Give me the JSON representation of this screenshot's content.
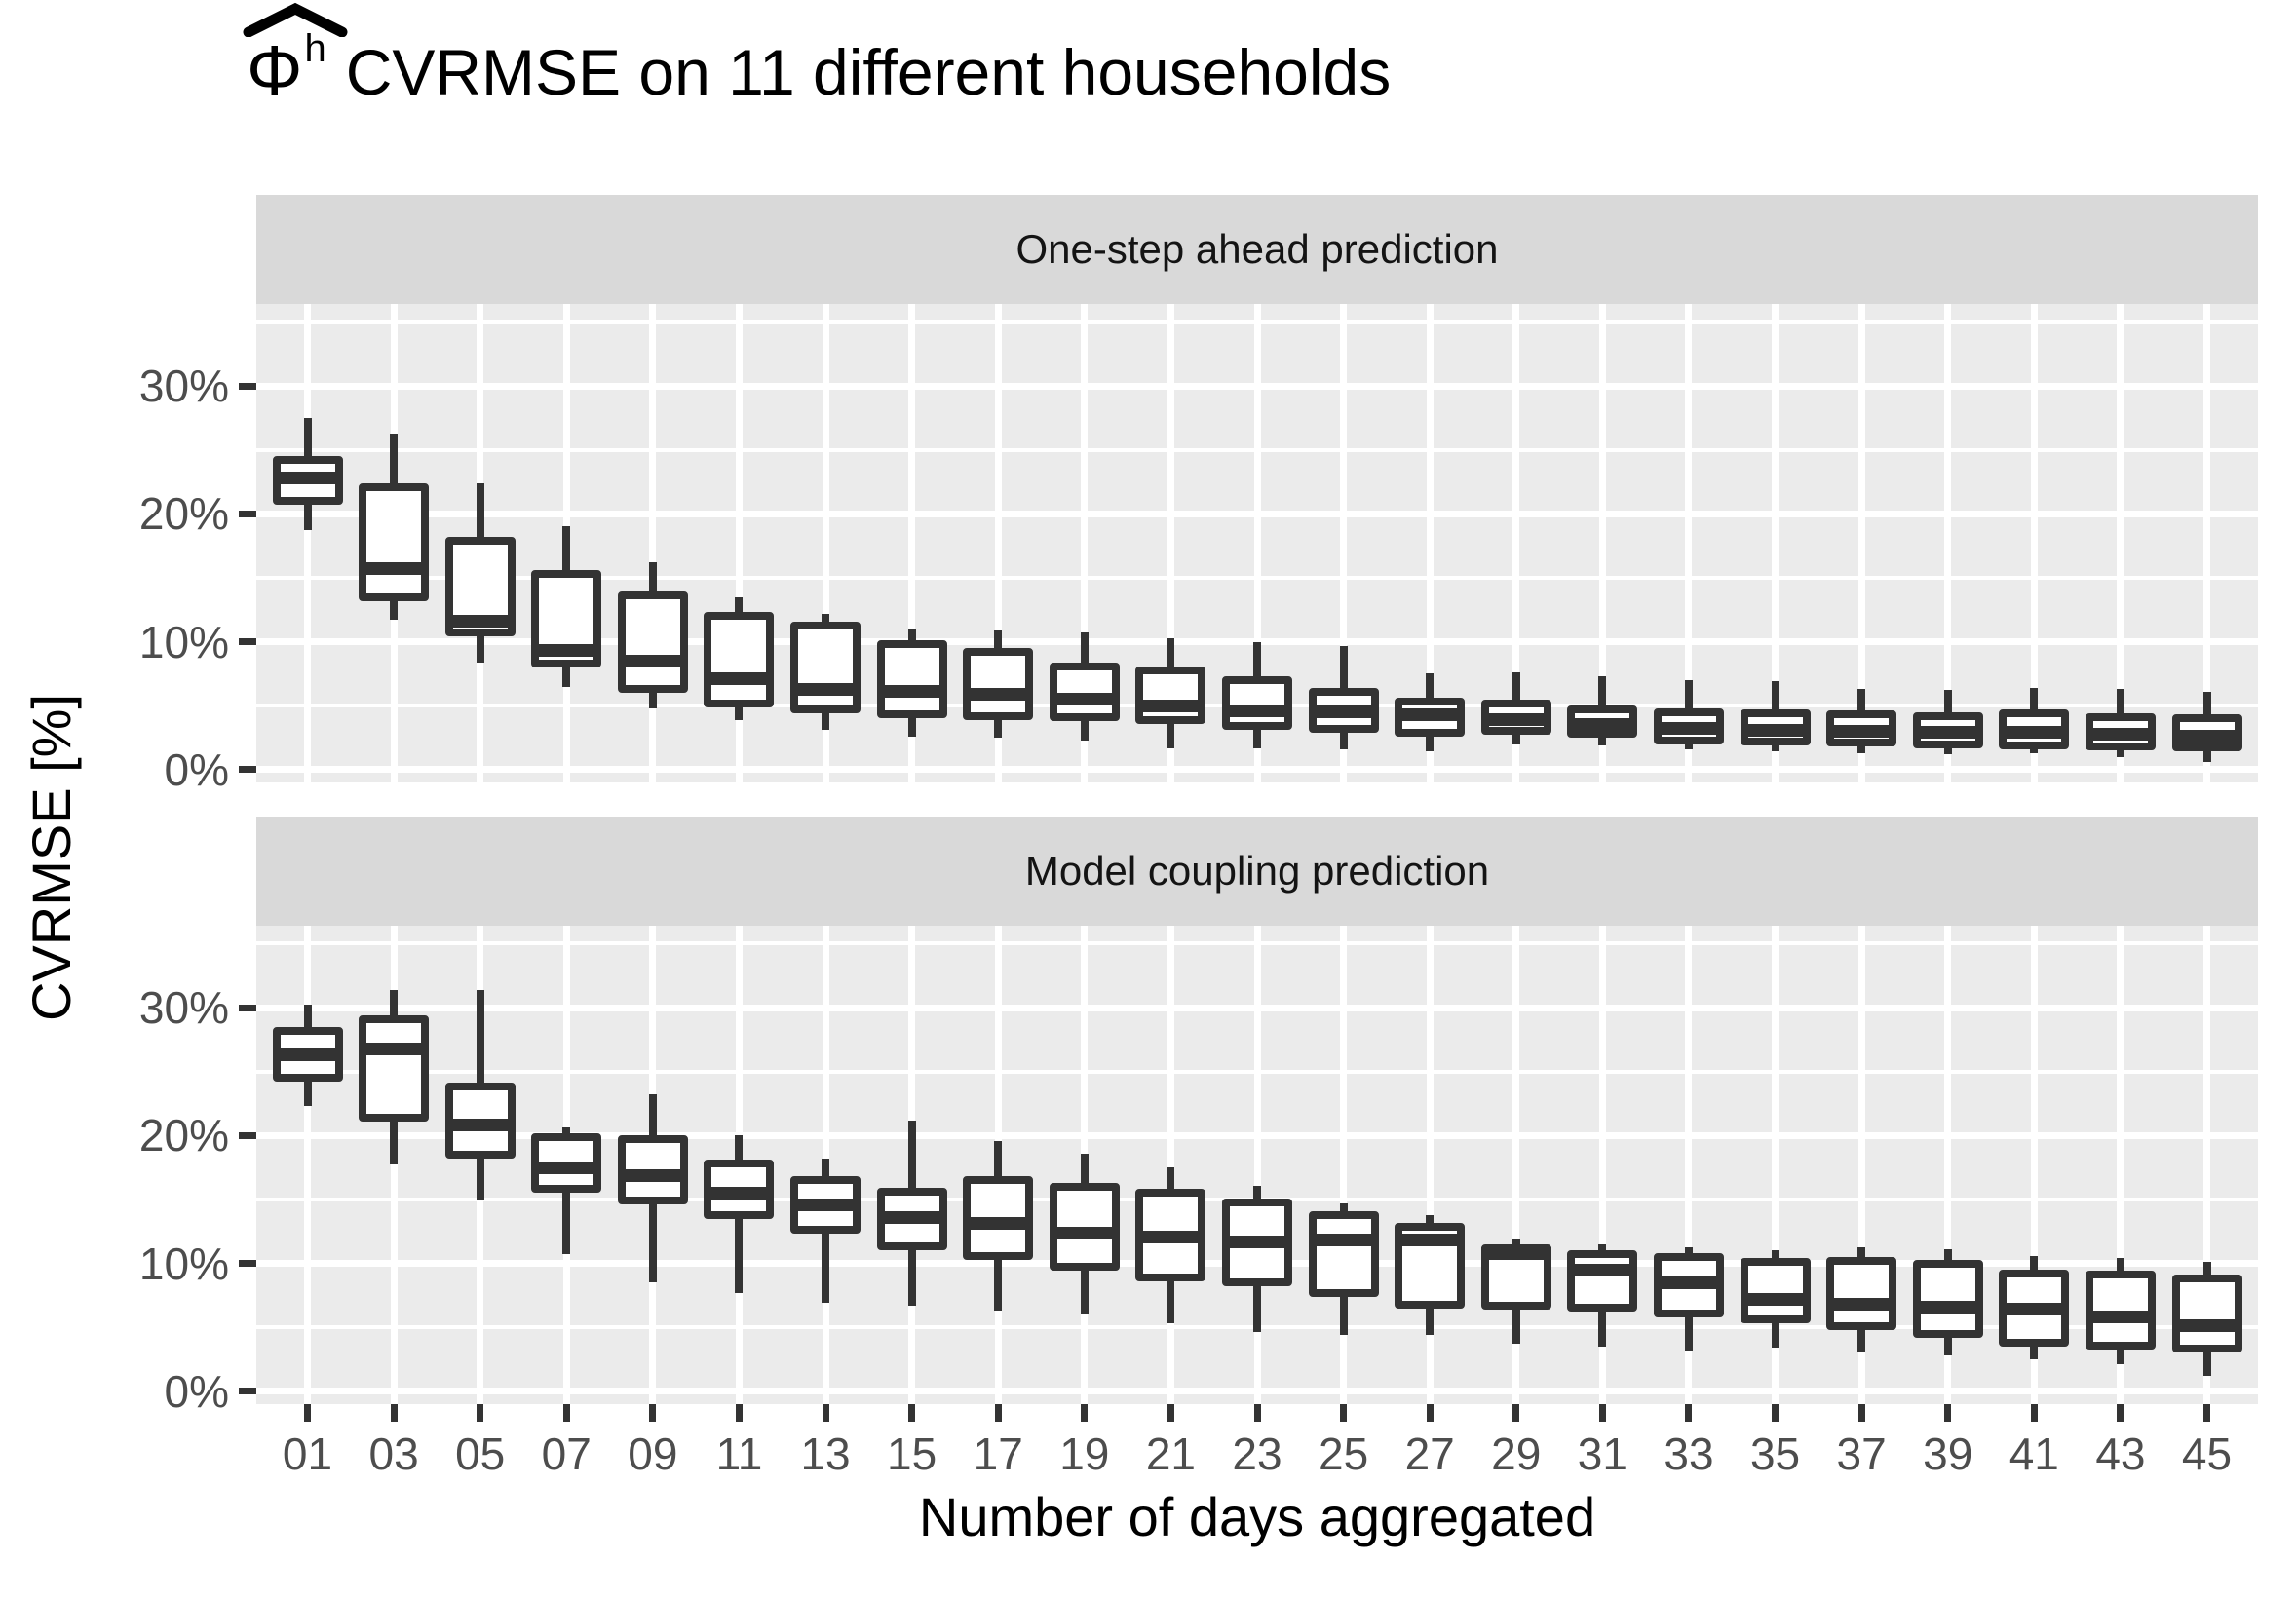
{
  "chart_data": {
    "type": "boxplot",
    "title": "Φ̂ʰ CVRMSE on 11 different households",
    "title_symbol": "Φ",
    "title_symbol_sup": "h",
    "title_text": "CVRMSE on 11 different households",
    "xlabel": "Number of days aggregated",
    "ylabel": "CVRMSE [%]",
    "legend_position": "none",
    "grid": "major-and-minor-horizontal, major-vertical",
    "ylim": [
      -1.0,
      36.4
    ],
    "y_major_ticks": {
      "values": [
        30,
        20,
        10,
        0
      ],
      "labels": [
        "30%",
        "20%",
        "10%",
        "0%"
      ]
    },
    "y_minor_ticks": [
      35,
      25,
      15,
      5
    ],
    "categories": [
      "01",
      "03",
      "05",
      "07",
      "09",
      "11",
      "13",
      "15",
      "17",
      "19",
      "21",
      "23",
      "25",
      "27",
      "29",
      "31",
      "33",
      "35",
      "37",
      "39",
      "41",
      "43",
      "45"
    ],
    "facets": [
      {
        "label": "One-step ahead prediction",
        "boxes": [
          {
            "x": "01",
            "whisker_low": 18.7,
            "q1": 20.7,
            "median": 22.8,
            "q3": 24.5,
            "whisker_high": 27.5
          },
          {
            "x": "03",
            "whisker_low": 11.7,
            "q1": 13.2,
            "median": 15.7,
            "q3": 22.4,
            "whisker_high": 26.3
          },
          {
            "x": "05",
            "whisker_low": 8.4,
            "q1": 10.4,
            "median": 11.6,
            "q3": 18.2,
            "whisker_high": 22.4
          },
          {
            "x": "07",
            "whisker_low": 6.5,
            "q1": 8.0,
            "median": 9.3,
            "q3": 15.6,
            "whisker_high": 19.0
          },
          {
            "x": "09",
            "whisker_low": 4.8,
            "q1": 6.0,
            "median": 8.5,
            "q3": 13.9,
            "whisker_high": 16.2
          },
          {
            "x": "11",
            "whisker_low": 3.9,
            "q1": 4.9,
            "median": 7.1,
            "q3": 12.3,
            "whisker_high": 13.5
          },
          {
            "x": "13",
            "whisker_low": 3.1,
            "q1": 4.4,
            "median": 6.3,
            "q3": 11.6,
            "whisker_high": 12.2
          },
          {
            "x": "15",
            "whisker_low": 2.6,
            "q1": 4.0,
            "median": 6.1,
            "q3": 10.1,
            "whisker_high": 11.0
          },
          {
            "x": "17",
            "whisker_low": 2.5,
            "q1": 3.9,
            "median": 5.9,
            "q3": 9.5,
            "whisker_high": 10.9
          },
          {
            "x": "19",
            "whisker_low": 2.3,
            "q1": 3.8,
            "median": 5.5,
            "q3": 8.4,
            "whisker_high": 10.7
          },
          {
            "x": "21",
            "whisker_low": 1.7,
            "q1": 3.6,
            "median": 5.0,
            "q3": 8.1,
            "whisker_high": 10.3
          },
          {
            "x": "23",
            "whisker_low": 1.7,
            "q1": 3.1,
            "median": 4.6,
            "q3": 7.3,
            "whisker_high": 10.0
          },
          {
            "x": "25",
            "whisker_low": 1.6,
            "q1": 2.9,
            "median": 4.5,
            "q3": 6.4,
            "whisker_high": 9.7
          },
          {
            "x": "27",
            "whisker_low": 1.4,
            "q1": 2.6,
            "median": 4.3,
            "q3": 5.6,
            "whisker_high": 7.5
          },
          {
            "x": "29",
            "whisker_low": 2.0,
            "q1": 2.7,
            "median": 3.9,
            "q3": 5.5,
            "whisker_high": 7.6
          },
          {
            "x": "31",
            "whisker_low": 1.9,
            "q1": 2.5,
            "median": 3.5,
            "q3": 5.0,
            "whisker_high": 7.3
          },
          {
            "x": "33",
            "whisker_low": 1.6,
            "q1": 2.0,
            "median": 3.2,
            "q3": 4.8,
            "whisker_high": 7.0
          },
          {
            "x": "35",
            "whisker_low": 1.4,
            "q1": 1.9,
            "median": 3.1,
            "q3": 4.7,
            "whisker_high": 6.9
          },
          {
            "x": "37",
            "whisker_low": 1.3,
            "q1": 1.8,
            "median": 3.0,
            "q3": 4.6,
            "whisker_high": 6.3
          },
          {
            "x": "39",
            "whisker_low": 1.2,
            "q1": 1.7,
            "median": 2.9,
            "q3": 4.5,
            "whisker_high": 6.2
          },
          {
            "x": "41",
            "whisker_low": 1.3,
            "q1": 1.6,
            "median": 2.9,
            "q3": 4.7,
            "whisker_high": 6.4
          },
          {
            "x": "43",
            "whisker_low": 1.0,
            "q1": 1.5,
            "median": 2.8,
            "q3": 4.4,
            "whisker_high": 6.3
          },
          {
            "x": "45",
            "whisker_low": 0.6,
            "q1": 1.4,
            "median": 2.6,
            "q3": 4.3,
            "whisker_high": 6.1
          }
        ]
      },
      {
        "label": "Model coupling prediction",
        "boxes": [
          {
            "x": "01",
            "whisker_low": 22.3,
            "q1": 24.2,
            "median": 26.3,
            "q3": 28.5,
            "whisker_high": 30.2
          },
          {
            "x": "03",
            "whisker_low": 17.7,
            "q1": 21.1,
            "median": 26.8,
            "q3": 29.4,
            "whisker_high": 31.4
          },
          {
            "x": "05",
            "whisker_low": 14.9,
            "q1": 18.2,
            "median": 20.8,
            "q3": 24.1,
            "whisker_high": 31.4
          },
          {
            "x": "07",
            "whisker_low": 10.7,
            "q1": 15.5,
            "median": 17.5,
            "q3": 20.2,
            "whisker_high": 20.6
          },
          {
            "x": "09",
            "whisker_low": 8.5,
            "q1": 14.6,
            "median": 16.9,
            "q3": 20.0,
            "whisker_high": 23.2
          },
          {
            "x": "11",
            "whisker_low": 7.7,
            "q1": 13.5,
            "median": 15.5,
            "q3": 18.1,
            "whisker_high": 20.0
          },
          {
            "x": "13",
            "whisker_low": 6.9,
            "q1": 12.3,
            "median": 14.6,
            "q3": 16.8,
            "whisker_high": 18.2
          },
          {
            "x": "15",
            "whisker_low": 6.7,
            "q1": 11.0,
            "median": 13.6,
            "q3": 15.9,
            "whisker_high": 21.2
          },
          {
            "x": "17",
            "whisker_low": 6.3,
            "q1": 10.3,
            "median": 13.1,
            "q3": 16.8,
            "whisker_high": 19.6
          },
          {
            "x": "19",
            "whisker_low": 6.0,
            "q1": 9.4,
            "median": 12.4,
            "q3": 16.3,
            "whisker_high": 18.6
          },
          {
            "x": "21",
            "whisker_low": 5.3,
            "q1": 8.6,
            "median": 12.1,
            "q3": 15.8,
            "whisker_high": 17.5
          },
          {
            "x": "23",
            "whisker_low": 4.6,
            "q1": 8.2,
            "median": 11.7,
            "q3": 15.1,
            "whisker_high": 16.1
          },
          {
            "x": "25",
            "whisker_low": 4.4,
            "q1": 7.4,
            "median": 11.8,
            "q3": 14.1,
            "whisker_high": 14.7
          },
          {
            "x": "27",
            "whisker_low": 4.4,
            "q1": 6.5,
            "median": 11.8,
            "q3": 13.2,
            "whisker_high": 13.8
          },
          {
            "x": "29",
            "whisker_low": 3.7,
            "q1": 6.4,
            "median": 10.8,
            "q3": 11.5,
            "whisker_high": 11.9
          },
          {
            "x": "31",
            "whisker_low": 3.5,
            "q1": 6.2,
            "median": 9.5,
            "q3": 11.0,
            "whisker_high": 11.5
          },
          {
            "x": "33",
            "whisker_low": 3.2,
            "q1": 5.8,
            "median": 8.5,
            "q3": 10.8,
            "whisker_high": 11.3
          },
          {
            "x": "35",
            "whisker_low": 3.4,
            "q1": 5.3,
            "median": 7.2,
            "q3": 10.4,
            "whisker_high": 11.0
          },
          {
            "x": "37",
            "whisker_low": 3.0,
            "q1": 4.8,
            "median": 6.8,
            "q3": 10.5,
            "whisker_high": 11.3
          },
          {
            "x": "39",
            "whisker_low": 2.8,
            "q1": 4.2,
            "median": 6.6,
            "q3": 10.3,
            "whisker_high": 11.1
          },
          {
            "x": "41",
            "whisker_low": 2.5,
            "q1": 3.5,
            "median": 6.4,
            "q3": 9.5,
            "whisker_high": 10.6
          },
          {
            "x": "43",
            "whisker_low": 2.1,
            "q1": 3.3,
            "median": 5.8,
            "q3": 9.4,
            "whisker_high": 10.4
          },
          {
            "x": "45",
            "whisker_low": 1.2,
            "q1": 3.0,
            "median": 5.1,
            "q3": 9.1,
            "whisker_high": 10.1
          }
        ]
      }
    ],
    "colors": {
      "panel_background": "#ebebeb",
      "strip_background": "#d9d9d9",
      "gridline": "#ffffff",
      "box_stroke": "#333333",
      "box_fill": "#ffffff",
      "axis_text": "#4d4d4d",
      "title_text": "#000000"
    }
  }
}
